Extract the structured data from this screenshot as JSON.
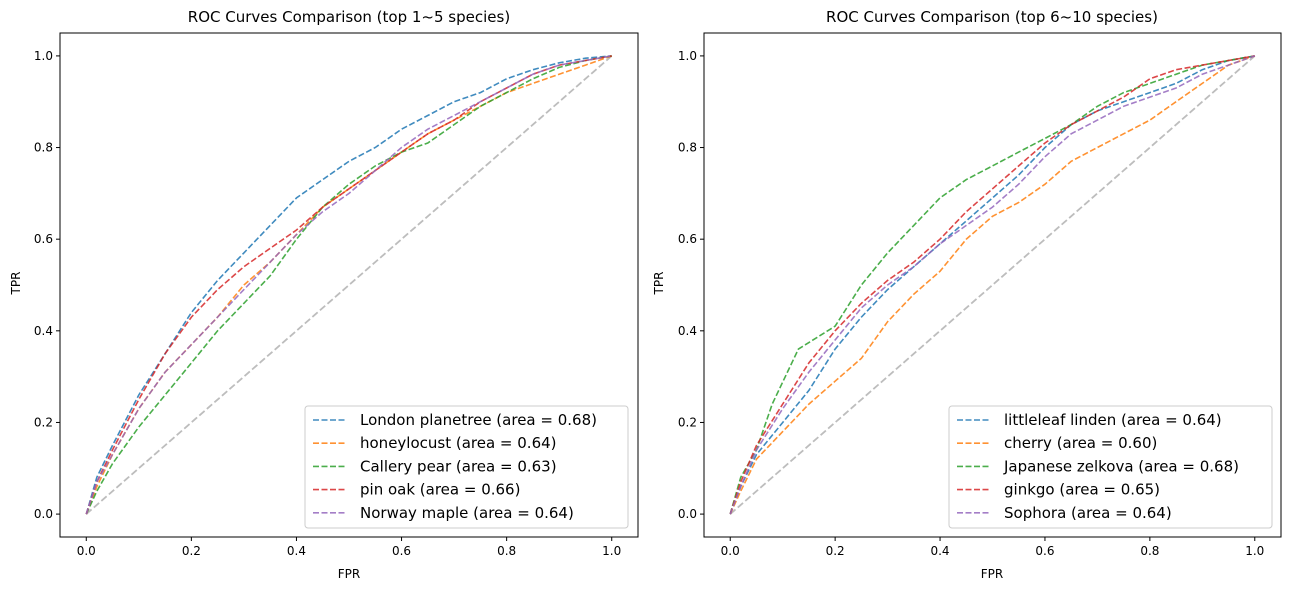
{
  "figure": {
    "background": "#ffffff"
  },
  "chart_data": [
    {
      "type": "line",
      "title": "ROC Curves Comparison (top 1~5 species)",
      "xlabel": "FPR",
      "ylabel": "TPR",
      "xlim": [
        -0.05,
        1.05
      ],
      "ylim": [
        -0.05,
        1.05
      ],
      "xticks": [
        "0.0",
        "0.2",
        "0.4",
        "0.6",
        "0.8",
        "1.0"
      ],
      "yticks": [
        "0.0",
        "0.2",
        "0.4",
        "0.6",
        "0.8",
        "1.0"
      ],
      "grid": false,
      "legend_position": "lower-right",
      "diagonal": {
        "color": "#bdbdbd",
        "x": [
          0,
          1
        ],
        "y": [
          0,
          1
        ]
      },
      "series": [
        {
          "name": "London planetree (area = 0.68)",
          "color": "#1f77b4",
          "x": [
            0,
            0.02,
            0.05,
            0.1,
            0.15,
            0.2,
            0.25,
            0.3,
            0.35,
            0.4,
            0.45,
            0.5,
            0.55,
            0.6,
            0.65,
            0.7,
            0.75,
            0.8,
            0.85,
            0.9,
            0.95,
            1.0
          ],
          "y": [
            0,
            0.08,
            0.15,
            0.26,
            0.35,
            0.44,
            0.51,
            0.57,
            0.63,
            0.69,
            0.73,
            0.77,
            0.8,
            0.84,
            0.87,
            0.9,
            0.92,
            0.95,
            0.97,
            0.985,
            0.995,
            1.0
          ]
        },
        {
          "name": "honeylocust (area = 0.64)",
          "color": "#ff7f0e",
          "x": [
            0,
            0.02,
            0.05,
            0.1,
            0.15,
            0.2,
            0.25,
            0.3,
            0.35,
            0.4,
            0.45,
            0.5,
            0.55,
            0.6,
            0.65,
            0.7,
            0.75,
            0.8,
            0.85,
            0.9,
            0.95,
            1.0
          ],
          "y": [
            0,
            0.06,
            0.13,
            0.23,
            0.31,
            0.37,
            0.43,
            0.5,
            0.55,
            0.61,
            0.67,
            0.71,
            0.75,
            0.79,
            0.83,
            0.86,
            0.89,
            0.92,
            0.94,
            0.96,
            0.98,
            1.0
          ]
        },
        {
          "name": "Callery pear (area = 0.63)",
          "color": "#2ca02c",
          "x": [
            0,
            0.02,
            0.05,
            0.1,
            0.15,
            0.2,
            0.25,
            0.3,
            0.35,
            0.4,
            0.45,
            0.5,
            0.55,
            0.6,
            0.65,
            0.7,
            0.75,
            0.8,
            0.85,
            0.9,
            0.95,
            1.0
          ],
          "y": [
            0,
            0.05,
            0.11,
            0.19,
            0.26,
            0.33,
            0.4,
            0.46,
            0.52,
            0.6,
            0.67,
            0.72,
            0.76,
            0.79,
            0.81,
            0.85,
            0.89,
            0.92,
            0.95,
            0.975,
            0.99,
            1.0
          ]
        },
        {
          "name": "pin oak (area = 0.66)",
          "color": "#d62728",
          "x": [
            0,
            0.02,
            0.05,
            0.1,
            0.15,
            0.2,
            0.25,
            0.3,
            0.35,
            0.4,
            0.45,
            0.5,
            0.55,
            0.6,
            0.65,
            0.7,
            0.75,
            0.8,
            0.85,
            0.9,
            0.95,
            1.0
          ],
          "y": [
            0,
            0.07,
            0.14,
            0.25,
            0.35,
            0.43,
            0.49,
            0.54,
            0.58,
            0.62,
            0.67,
            0.71,
            0.75,
            0.79,
            0.83,
            0.86,
            0.9,
            0.93,
            0.96,
            0.98,
            0.99,
            1.0
          ]
        },
        {
          "name": "Norway maple (area = 0.64)",
          "color": "#9467bd",
          "x": [
            0,
            0.02,
            0.05,
            0.1,
            0.15,
            0.2,
            0.25,
            0.3,
            0.35,
            0.4,
            0.45,
            0.5,
            0.55,
            0.6,
            0.65,
            0.7,
            0.75,
            0.8,
            0.85,
            0.9,
            0.95,
            1.0
          ],
          "y": [
            0,
            0.07,
            0.13,
            0.23,
            0.31,
            0.37,
            0.43,
            0.49,
            0.55,
            0.61,
            0.66,
            0.7,
            0.75,
            0.8,
            0.84,
            0.87,
            0.9,
            0.93,
            0.96,
            0.98,
            0.99,
            1.0
          ]
        }
      ]
    },
    {
      "type": "line",
      "title": "ROC Curves Comparison (top 6~10 species)",
      "xlabel": "FPR",
      "ylabel": "TPR",
      "xlim": [
        -0.05,
        1.05
      ],
      "ylim": [
        -0.05,
        1.05
      ],
      "xticks": [
        "0.0",
        "0.2",
        "0.4",
        "0.6",
        "0.8",
        "1.0"
      ],
      "yticks": [
        "0.0",
        "0.2",
        "0.4",
        "0.6",
        "0.8",
        "1.0"
      ],
      "grid": false,
      "legend_position": "lower-right",
      "diagonal": {
        "color": "#bdbdbd",
        "x": [
          0,
          1
        ],
        "y": [
          0,
          1
        ]
      },
      "series": [
        {
          "name": "littleleaf linden (area = 0.64)",
          "color": "#1f77b4",
          "x": [
            0,
            0.02,
            0.05,
            0.1,
            0.15,
            0.2,
            0.25,
            0.3,
            0.35,
            0.4,
            0.45,
            0.5,
            0.55,
            0.6,
            0.65,
            0.7,
            0.75,
            0.8,
            0.85,
            0.9,
            0.95,
            1.0
          ],
          "y": [
            0,
            0.06,
            0.13,
            0.2,
            0.27,
            0.36,
            0.43,
            0.49,
            0.54,
            0.59,
            0.64,
            0.69,
            0.74,
            0.8,
            0.85,
            0.88,
            0.9,
            0.92,
            0.94,
            0.97,
            0.99,
            1.0
          ]
        },
        {
          "name": "cherry (area = 0.60)",
          "color": "#ff7f0e",
          "x": [
            0,
            0.02,
            0.05,
            0.1,
            0.15,
            0.2,
            0.25,
            0.3,
            0.35,
            0.4,
            0.45,
            0.5,
            0.55,
            0.6,
            0.65,
            0.7,
            0.75,
            0.8,
            0.85,
            0.9,
            0.95,
            1.0
          ],
          "y": [
            0,
            0.05,
            0.12,
            0.18,
            0.24,
            0.29,
            0.34,
            0.42,
            0.48,
            0.53,
            0.6,
            0.65,
            0.68,
            0.72,
            0.77,
            0.8,
            0.83,
            0.86,
            0.9,
            0.94,
            0.98,
            1.0
          ]
        },
        {
          "name": "Japanese zelkova (area = 0.68)",
          "color": "#2ca02c",
          "x": [
            0,
            0.02,
            0.05,
            0.08,
            0.13,
            0.2,
            0.25,
            0.3,
            0.35,
            0.4,
            0.45,
            0.5,
            0.55,
            0.6,
            0.65,
            0.7,
            0.75,
            0.8,
            0.85,
            0.9,
            0.95,
            1.0
          ],
          "y": [
            0,
            0.08,
            0.14,
            0.24,
            0.36,
            0.41,
            0.5,
            0.57,
            0.63,
            0.69,
            0.73,
            0.76,
            0.79,
            0.82,
            0.85,
            0.89,
            0.92,
            0.94,
            0.96,
            0.98,
            0.99,
            1.0
          ]
        },
        {
          "name": "ginkgo (area = 0.65)",
          "color": "#d62728",
          "x": [
            0,
            0.02,
            0.05,
            0.1,
            0.15,
            0.2,
            0.25,
            0.3,
            0.35,
            0.4,
            0.45,
            0.5,
            0.55,
            0.6,
            0.65,
            0.7,
            0.75,
            0.8,
            0.85,
            0.9,
            0.95,
            1.0
          ],
          "y": [
            0,
            0.07,
            0.15,
            0.24,
            0.33,
            0.4,
            0.46,
            0.51,
            0.55,
            0.6,
            0.66,
            0.71,
            0.76,
            0.81,
            0.85,
            0.88,
            0.91,
            0.95,
            0.97,
            0.98,
            0.99,
            1.0
          ]
        },
        {
          "name": "Sophora (area = 0.64)",
          "color": "#9467bd",
          "x": [
            0,
            0.02,
            0.05,
            0.1,
            0.15,
            0.2,
            0.25,
            0.3,
            0.35,
            0.4,
            0.45,
            0.5,
            0.55,
            0.6,
            0.65,
            0.7,
            0.75,
            0.8,
            0.85,
            0.9,
            0.95,
            1.0
          ],
          "y": [
            0,
            0.06,
            0.14,
            0.23,
            0.31,
            0.38,
            0.45,
            0.5,
            0.54,
            0.59,
            0.63,
            0.67,
            0.72,
            0.78,
            0.83,
            0.86,
            0.89,
            0.91,
            0.93,
            0.96,
            0.98,
            1.0
          ]
        }
      ]
    }
  ]
}
